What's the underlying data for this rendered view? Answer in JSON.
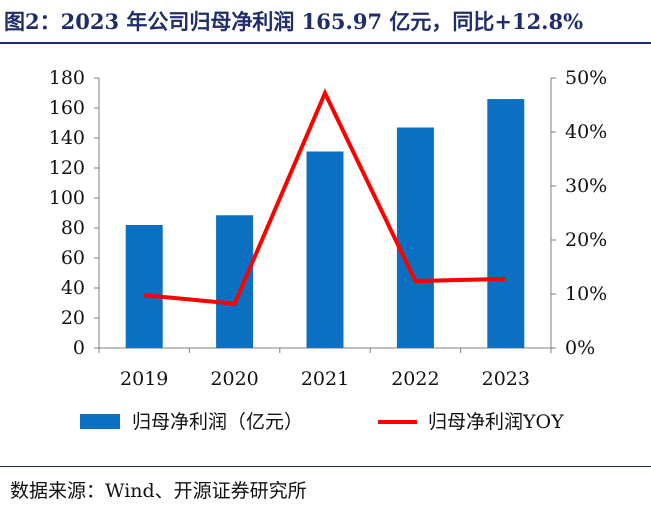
{
  "header": {
    "title": "图2：2023 年公司归母净利润 165.97 亿元，同比+12.8%"
  },
  "footer": {
    "source": "数据来源：Wind、开源证券研究所"
  },
  "chart_data": {
    "type": "bar",
    "categories": [
      "2019",
      "2020",
      "2021",
      "2022",
      "2023"
    ],
    "series": [
      {
        "name": "归母净利润（亿元）",
        "type": "bar",
        "axis": "left",
        "color": "#0b6fc2",
        "values": [
          82,
          88.5,
          131,
          147,
          165.97
        ]
      },
      {
        "name": "归母净利润YOY",
        "type": "line",
        "axis": "right",
        "color": "#ff0000",
        "values": [
          9.8,
          8.2,
          47.2,
          12.4,
          12.8
        ]
      }
    ],
    "y_left": {
      "ylim": [
        0,
        180
      ],
      "ticks": [
        "0",
        "20",
        "40",
        "60",
        "80",
        "100",
        "120",
        "140",
        "160",
        "180"
      ]
    },
    "y_right": {
      "ylim": [
        0,
        50
      ],
      "ticks": [
        "0%",
        "10%",
        "20%",
        "30%",
        "40%",
        "50%"
      ]
    },
    "grid": false,
    "legend": "bottom"
  }
}
